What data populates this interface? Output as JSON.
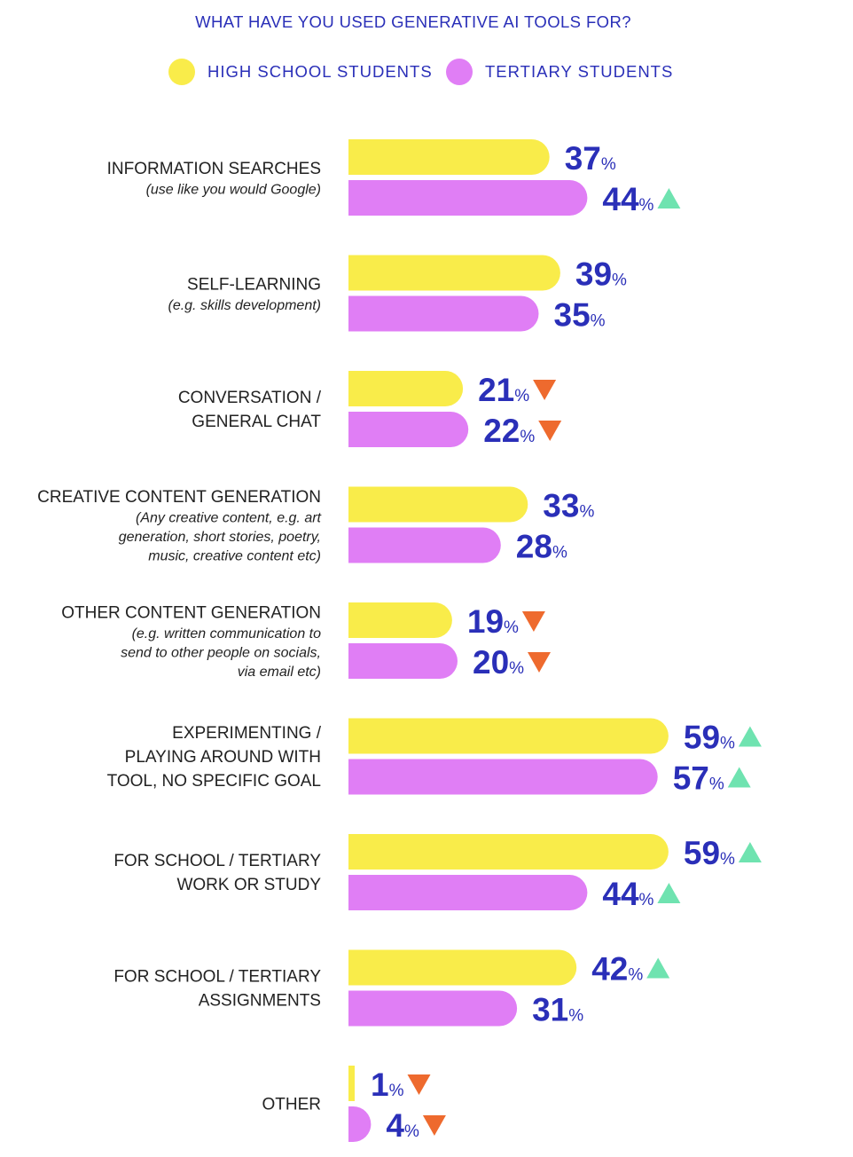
{
  "chart_data": {
    "type": "bar",
    "orientation": "horizontal",
    "title": "WHAT HAVE YOU USED GENERATIVE AI TOOLS FOR?",
    "value_suffix": "%",
    "series": [
      {
        "name": "HIGH SCHOOL STUDENTS",
        "color": "#f9ec4a",
        "values": [
          37,
          39,
          21,
          33,
          19,
          59,
          59,
          42,
          1
        ],
        "change": [
          "",
          "",
          "down",
          "",
          "down",
          "up",
          "up",
          "up",
          "down"
        ]
      },
      {
        "name": "TERTIARY STUDENTS",
        "color": "#e07ef5",
        "values": [
          44,
          35,
          22,
          28,
          20,
          57,
          44,
          31,
          4
        ],
        "change": [
          "up",
          "",
          "down",
          "",
          "down",
          "up",
          "up",
          "",
          "down"
        ]
      }
    ],
    "categories": [
      {
        "label": [
          "INFORMATION SEARCHES"
        ],
        "note": [
          "(use like you would Google)"
        ]
      },
      {
        "label": [
          "SELF-LEARNING"
        ],
        "note": [
          "(e.g. skills development)"
        ]
      },
      {
        "label": [
          "CONVERSATION /",
          "GENERAL CHAT"
        ],
        "note": []
      },
      {
        "label": [
          "CREATIVE CONTENT GENERATION"
        ],
        "note": [
          "(Any creative content, e.g. art",
          "generation, short stories, poetry,",
          "music, creative content etc)"
        ]
      },
      {
        "label": [
          "OTHER CONTENT GENERATION"
        ],
        "note": [
          "(e.g. written communication to",
          "send to other people on socials,",
          "via email etc)"
        ]
      },
      {
        "label": [
          "EXPERIMENTING /",
          "PLAYING AROUND WITH",
          "TOOL, NO SPECIFIC GOAL"
        ],
        "note": []
      },
      {
        "label": [
          "FOR SCHOOL / TERTIARY",
          "WORK OR STUDY"
        ],
        "note": []
      },
      {
        "label": [
          "FOR SCHOOL / TERTIARY",
          "ASSIGNMENTS"
        ],
        "note": []
      },
      {
        "label": [
          "OTHER"
        ],
        "note": []
      }
    ],
    "colors": {
      "text": "#222222",
      "value": "#2a2fb8",
      "up": "#6fe3b0",
      "down": "#ee6a2e"
    }
  }
}
